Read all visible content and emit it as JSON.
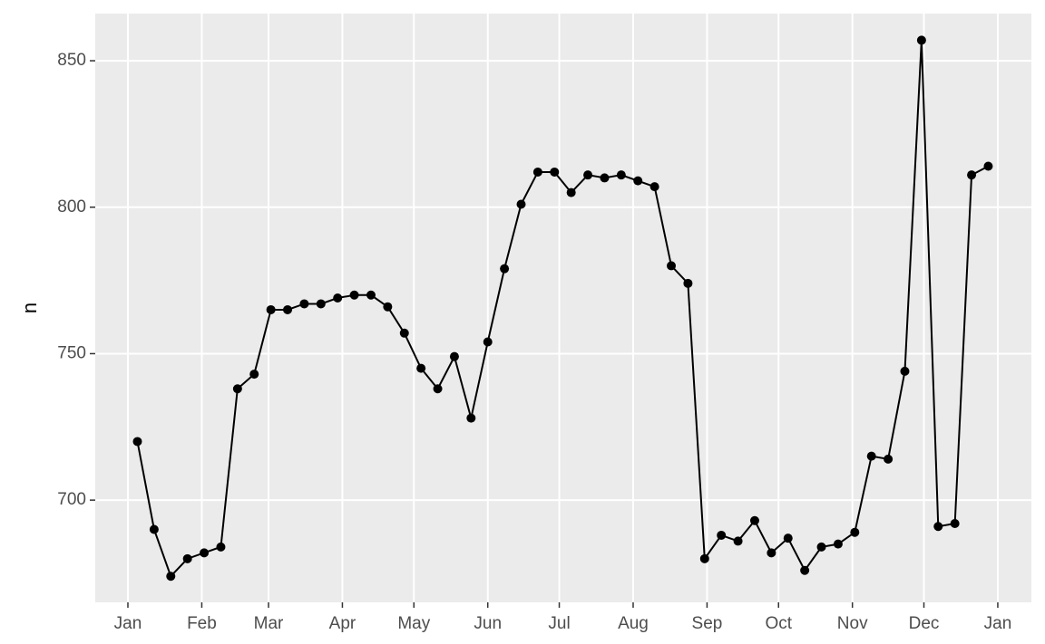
{
  "chart_data": {
    "type": "line",
    "y_label": "n",
    "x": [
      4,
      11,
      18,
      25,
      32,
      39,
      46,
      53,
      60,
      67,
      74,
      81,
      88,
      95,
      102,
      109,
      116,
      123,
      130,
      137,
      144,
      151,
      158,
      165,
      172,
      179,
      186,
      193,
      200,
      207,
      214,
      221,
      228,
      235,
      242,
      249,
      256,
      263,
      270,
      277,
      284,
      291,
      298,
      305,
      312,
      319,
      326,
      333,
      340,
      347,
      354,
      361
    ],
    "series": [
      {
        "color": "#000000",
        "values": [
          720,
          690,
          674,
          680,
          682,
          684,
          738,
          743,
          765,
          765,
          767,
          767,
          769,
          770,
          770,
          766,
          757,
          745,
          738,
          749,
          728,
          754,
          779,
          801,
          812,
          812,
          805,
          811,
          810,
          811,
          809,
          807,
          780,
          774,
          680,
          688,
          686,
          693,
          682,
          687,
          676,
          684,
          685,
          689,
          715,
          714,
          744,
          857,
          691,
          692,
          811,
          814
        ]
      }
    ],
    "xlim": [
      -13.7,
      379.1
    ],
    "xticks": [
      {
        "value": 0,
        "label": "Jan"
      },
      {
        "value": 31,
        "label": "Feb"
      },
      {
        "value": 59,
        "label": "Mar"
      },
      {
        "value": 90,
        "label": "Apr"
      },
      {
        "value": 120,
        "label": "May"
      },
      {
        "value": 151,
        "label": "Jun"
      },
      {
        "value": 181,
        "label": "Jul"
      },
      {
        "value": 212,
        "label": "Aug"
      },
      {
        "value": 243,
        "label": "Sep"
      },
      {
        "value": 273,
        "label": "Oct"
      },
      {
        "value": 304,
        "label": "Nov"
      },
      {
        "value": 334,
        "label": "Dec"
      },
      {
        "value": 365,
        "label": "Jan"
      }
    ],
    "ylim": [
      665.1,
      866.1
    ],
    "yticks": [
      700,
      750,
      800,
      850
    ],
    "grid": true,
    "panel_color": "#ebebeb"
  }
}
